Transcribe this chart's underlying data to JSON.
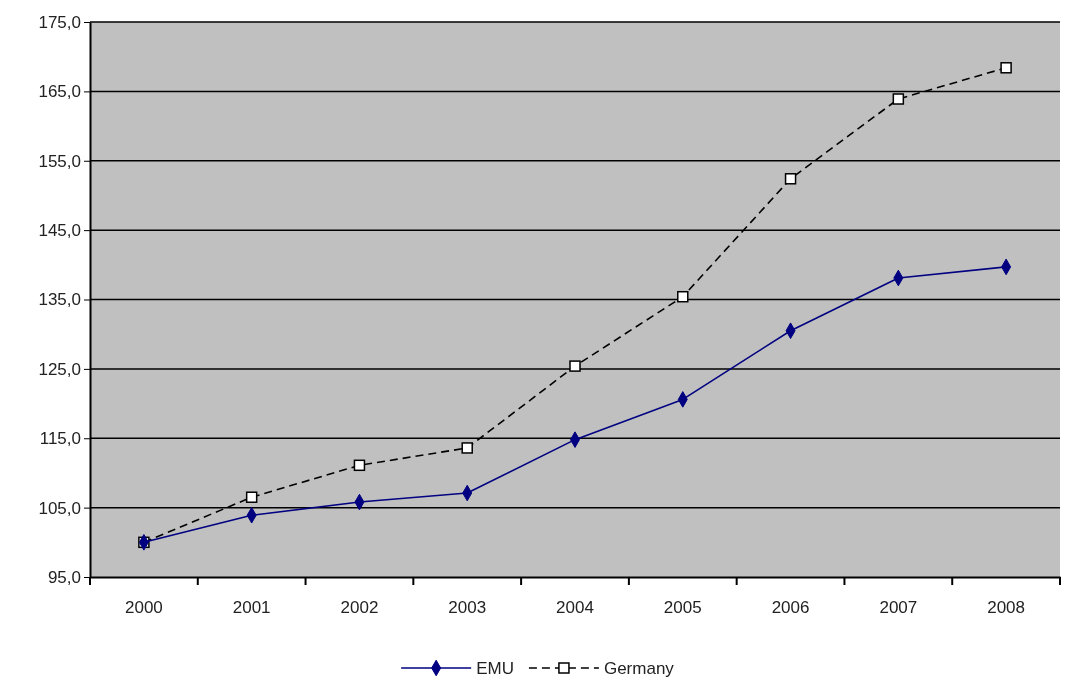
{
  "chart_data": {
    "type": "line",
    "categories": [
      "2000",
      "2001",
      "2002",
      "2003",
      "2004",
      "2005",
      "2006",
      "2007",
      "2008"
    ],
    "series": [
      {
        "name": "EMU",
        "color": "#000080",
        "marker": "diamond",
        "line_style": "solid",
        "values": [
          100,
          103.9,
          105.8,
          107.1,
          114.8,
          120.6,
          130.5,
          138.1,
          139.7
        ]
      },
      {
        "name": "Germany",
        "color": "#000000",
        "marker": "square",
        "line_style": "dashed",
        "values": [
          100,
          106.5,
          111.1,
          113.6,
          125.4,
          135.4,
          152.4,
          163.9,
          168.4
        ]
      }
    ],
    "ylim": [
      95,
      175
    ],
    "yticks": [
      {
        "value": 95,
        "label": "95,0"
      },
      {
        "value": 105,
        "label": "105,0"
      },
      {
        "value": 115,
        "label": "115,0"
      },
      {
        "value": 125,
        "label": "125,0"
      },
      {
        "value": 135,
        "label": "135,0"
      },
      {
        "value": 145,
        "label": "145,0"
      },
      {
        "value": 155,
        "label": "155,0"
      },
      {
        "value": 165,
        "label": "165,0"
      },
      {
        "value": 175,
        "label": "175,0"
      }
    ],
    "grid": "y",
    "legend": "bottom"
  }
}
